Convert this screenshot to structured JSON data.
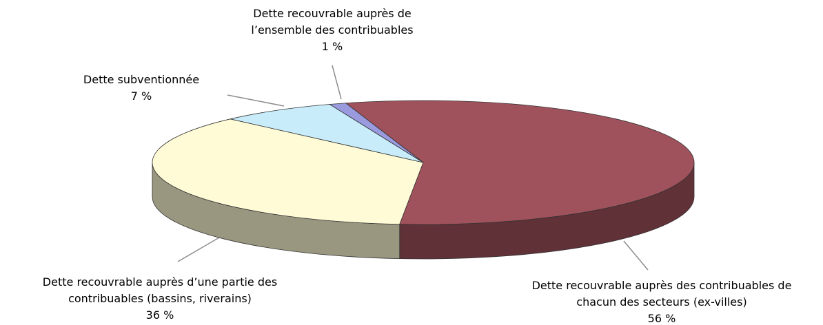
{
  "chart_data": {
    "type": "pie3d",
    "categories": [
      "Dette recouvrable auprès des contribuables de\nchacun des secteurs (ex-villes)",
      "Dette recouvrable auprès d’une partie des\ncontribuables (bassins, riverains)",
      "Dette subventionnée",
      "Dette recouvrable auprès de\nl’ensemble des contribuables"
    ],
    "values": [
      56,
      36,
      7,
      1
    ],
    "value_labels": [
      "56 %",
      "36 %",
      "7 %",
      "1 %"
    ],
    "colors": [
      "#a0525c",
      "#fffbd6",
      "#c8ecfa",
      "#9a9ade"
    ]
  }
}
